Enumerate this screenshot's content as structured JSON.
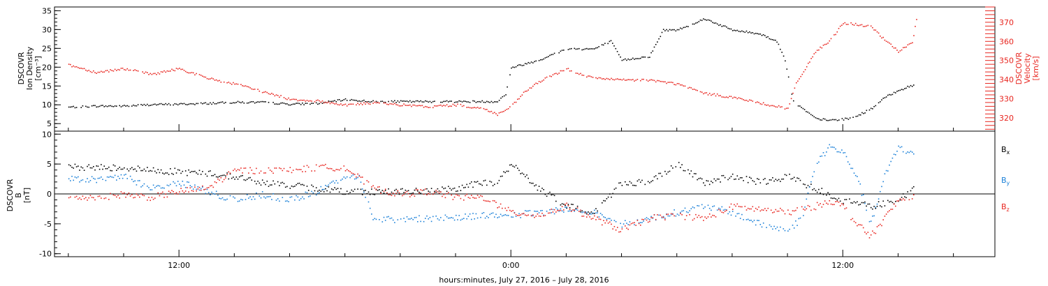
{
  "chart_data": [
    {
      "type": "scatter",
      "panel": "top",
      "ylabel": [
        "DSCOVR",
        "Ion Density",
        "[cm⁻³]"
      ],
      "ylim": [
        3,
        36
      ],
      "yticks": [
        5,
        10,
        15,
        20,
        25,
        30,
        35
      ],
      "ylabel_right": [
        "DSCOVR",
        "Velocity",
        "[km/s]"
      ],
      "ylim_right": [
        313,
        378
      ],
      "yticks_right": [
        320,
        330,
        340,
        350,
        360,
        370
      ],
      "xlim_hours": [
        7.5,
        41.5
      ],
      "series": [
        {
          "name": "Ion Density",
          "axis": "left",
          "color": "#000000",
          "points": [
            [
              8,
              9.5
            ],
            [
              9,
              9.8
            ],
            [
              10,
              9.8
            ],
            [
              11,
              10.2
            ],
            [
              12,
              10.3
            ],
            [
              13,
              10.5
            ],
            [
              14,
              10.8
            ],
            [
              15,
              10.8
            ],
            [
              16,
              10.3
            ],
            [
              17,
              10.5
            ],
            [
              18,
              11.5
            ],
            [
              19,
              11
            ],
            [
              20,
              11
            ],
            [
              21,
              11
            ],
            [
              22,
              11
            ],
            [
              23,
              11
            ],
            [
              23.5,
              11
            ],
            [
              23.8,
              13
            ],
            [
              24,
              20
            ],
            [
              24.5,
              21
            ],
            [
              25,
              22
            ],
            [
              26,
              25
            ],
            [
              27,
              25
            ],
            [
              27.6,
              27
            ],
            [
              28,
              22
            ],
            [
              29,
              23
            ],
            [
              29.5,
              30
            ],
            [
              30,
              30
            ],
            [
              31,
              33
            ],
            [
              32,
              30
            ],
            [
              33,
              29
            ],
            [
              33.6,
              27
            ],
            [
              33.9,
              22
            ],
            [
              34.2,
              11
            ],
            [
              35,
              6.5
            ],
            [
              35.5,
              6
            ],
            [
              36.3,
              6.5
            ],
            [
              37,
              9
            ],
            [
              37.5,
              12
            ],
            [
              38,
              14
            ],
            [
              38.6,
              15.5
            ]
          ]
        },
        {
          "name": "Velocity",
          "axis": "right",
          "color": "#e8251f",
          "points": [
            [
              8,
              348
            ],
            [
              9,
              344
            ],
            [
              10,
              346
            ],
            [
              11,
              343
            ],
            [
              12,
              346
            ],
            [
              13,
              341
            ],
            [
              14,
              338
            ],
            [
              15,
              334
            ],
            [
              16,
              330
            ],
            [
              17,
              329
            ],
            [
              18,
              327
            ],
            [
              19,
              328
            ],
            [
              20,
              327
            ],
            [
              21,
              326
            ],
            [
              22,
              327
            ],
            [
              23,
              325
            ],
            [
              23.5,
              322
            ],
            [
              24,
              326
            ],
            [
              24.5,
              334
            ],
            [
              25,
              339
            ],
            [
              26,
              346
            ],
            [
              26.5,
              343
            ],
            [
              27,
              341
            ],
            [
              28,
              340
            ],
            [
              29,
              340
            ],
            [
              30,
              338
            ],
            [
              31,
              333
            ],
            [
              32,
              331
            ],
            [
              33,
              328
            ],
            [
              34,
              325
            ],
            [
              34.3,
              338
            ],
            [
              35,
              355
            ],
            [
              35.5,
              360
            ],
            [
              36,
              370
            ],
            [
              36.5,
              369
            ],
            [
              37,
              368
            ],
            [
              37.5,
              361
            ],
            [
              38,
              355
            ],
            [
              38.5,
              360
            ],
            [
              38.7,
              375
            ]
          ]
        }
      ]
    },
    {
      "type": "scatter",
      "panel": "bottom",
      "ylabel": [
        "DSCOVR",
        "B",
        "[nT]"
      ],
      "ylim": [
        -10.5,
        10.5
      ],
      "yticks": [
        -10,
        -5,
        0,
        5,
        10
      ],
      "xlim_hours": [
        7.5,
        41.5
      ],
      "zero_line": true,
      "legend": [
        "B",
        "B",
        "B"
      ],
      "legend_subscripts": [
        "x",
        "y",
        "z"
      ],
      "series": [
        {
          "name": "B_x",
          "color": "#000000",
          "points": [
            [
              8,
              4.5
            ],
            [
              9,
              4.5
            ],
            [
              10,
              4.5
            ],
            [
              11,
              4
            ],
            [
              12,
              3.8
            ],
            [
              13,
              3.5
            ],
            [
              14,
              3
            ],
            [
              15,
              2
            ],
            [
              16,
              1.5
            ],
            [
              17,
              1
            ],
            [
              18,
              0.5
            ],
            [
              19,
              0.5
            ],
            [
              20,
              0.5
            ],
            [
              21,
              0.5
            ],
            [
              22,
              1
            ],
            [
              23,
              2
            ],
            [
              23.5,
              2
            ],
            [
              24,
              5
            ],
            [
              25,
              1
            ],
            [
              26,
              -2
            ],
            [
              27,
              -3
            ],
            [
              28,
              2
            ],
            [
              29,
              2
            ],
            [
              30,
              5
            ],
            [
              31,
              2
            ],
            [
              32,
              3
            ],
            [
              33,
              2
            ],
            [
              34,
              3
            ],
            [
              35,
              1
            ],
            [
              36,
              -1
            ],
            [
              37,
              -2
            ],
            [
              38,
              -1
            ],
            [
              38.6,
              1
            ]
          ]
        },
        {
          "name": "B_y",
          "color": "#1a80d8",
          "points": [
            [
              8,
              2.5
            ],
            [
              9,
              2.5
            ],
            [
              10,
              3
            ],
            [
              11,
              1
            ],
            [
              12,
              2
            ],
            [
              13,
              0.5
            ],
            [
              14,
              -1
            ],
            [
              15,
              0
            ],
            [
              16,
              -1
            ],
            [
              17,
              0.5
            ],
            [
              18,
              3
            ],
            [
              18.5,
              3
            ],
            [
              19,
              -4
            ],
            [
              20,
              -4.3
            ],
            [
              21,
              -4
            ],
            [
              22,
              -3.8
            ],
            [
              23,
              -3.5
            ],
            [
              24,
              -3.5
            ],
            [
              25,
              -3
            ],
            [
              26,
              -2.5
            ],
            [
              27,
              -3
            ],
            [
              28,
              -5
            ],
            [
              29,
              -4
            ],
            [
              30,
              -3
            ],
            [
              31,
              -2
            ],
            [
              32,
              -3
            ],
            [
              33,
              -5
            ],
            [
              34,
              -6
            ],
            [
              34.5,
              -4
            ],
            [
              35,
              5
            ],
            [
              35.5,
              8
            ],
            [
              36,
              7
            ],
            [
              36.5,
              3
            ],
            [
              37,
              -5
            ],
            [
              37.5,
              3
            ],
            [
              38,
              8
            ],
            [
              38.6,
              6.5
            ]
          ]
        },
        {
          "name": "B_z",
          "color": "#e8251f",
          "points": [
            [
              8,
              -0.5
            ],
            [
              9,
              -0.5
            ],
            [
              10,
              0
            ],
            [
              11,
              -0.5
            ],
            [
              12,
              0.5
            ],
            [
              13,
              1
            ],
            [
              14,
              4
            ],
            [
              15,
              4
            ],
            [
              16,
              4
            ],
            [
              17,
              4.5
            ],
            [
              18,
              4.5
            ],
            [
              19,
              1
            ],
            [
              20,
              0
            ],
            [
              21,
              0.5
            ],
            [
              22,
              -0.5
            ],
            [
              23,
              -0.5
            ],
            [
              24,
              -3
            ],
            [
              25,
              -3.5
            ],
            [
              26,
              -2
            ],
            [
              27,
              -4
            ],
            [
              28,
              -6
            ],
            [
              29,
              -4
            ],
            [
              30,
              -3.5
            ],
            [
              31,
              -4
            ],
            [
              32,
              -2
            ],
            [
              33,
              -2.5
            ],
            [
              34,
              -3
            ],
            [
              35,
              -2
            ],
            [
              35.5,
              -1
            ],
            [
              36,
              -2
            ],
            [
              36.5,
              -5
            ],
            [
              37,
              -7
            ],
            [
              37.5,
              -4
            ],
            [
              38,
              -1
            ],
            [
              38.6,
              0
            ]
          ]
        }
      ]
    }
  ],
  "time_axis": {
    "tick_labels": [
      {
        "hour": 12,
        "label": "12:00"
      },
      {
        "hour": 24,
        "label": "0:00"
      },
      {
        "hour": 36,
        "label": "12:00"
      }
    ],
    "xlabel": "hours:minutes, July 27, 2016 – July 28, 2016"
  }
}
